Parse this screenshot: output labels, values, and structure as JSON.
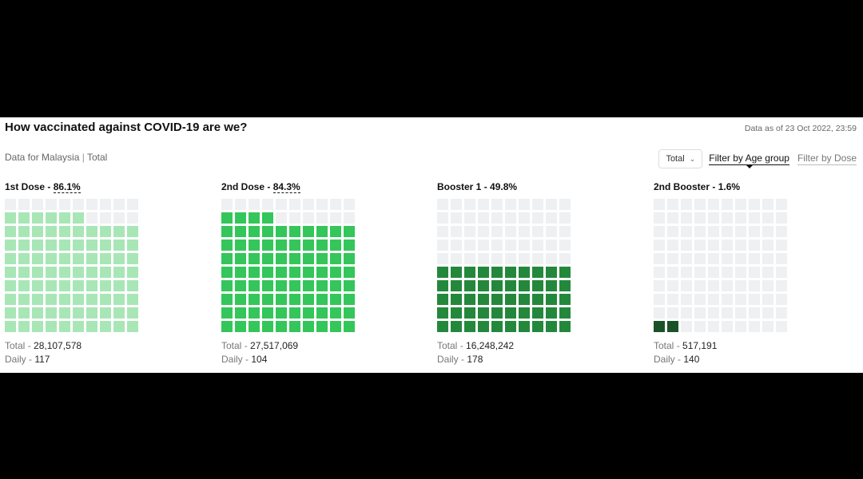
{
  "header": {
    "title": "How vaccinated against COVID-19 are we?",
    "as_of": "Data as of 23 Oct 2022, 23:59",
    "region": "Data for Malaysia",
    "separator": "|",
    "scope": "Total"
  },
  "controls": {
    "dropdown_value": "Total",
    "filter_age": "Filter by Age group",
    "filter_dose": "Filter by Dose"
  },
  "colors": {
    "empty": "#eef0f2"
  },
  "chart_data": [
    {
      "type": "waffle",
      "title": "1st Dose",
      "separator": " - ",
      "percent_label": "86.1%",
      "value": 86.1,
      "color": "#a8e6b6",
      "total_label": "Total",
      "total_value": "28,107,578",
      "daily_label": "Daily",
      "daily_value": "117"
    },
    {
      "type": "waffle",
      "title": "2nd Dose",
      "separator": " - ",
      "percent_label": "84.3%",
      "value": 84.3,
      "color": "#34c65a",
      "total_label": "Total",
      "total_value": "27,517,069",
      "daily_label": "Daily",
      "daily_value": "104"
    },
    {
      "type": "waffle",
      "title": "Booster 1",
      "separator": " - ",
      "percent_label": "49.8%",
      "value": 49.8,
      "color": "#24883c",
      "total_label": "Total",
      "total_value": "16,248,242",
      "daily_label": "Daily",
      "daily_value": "178"
    },
    {
      "type": "waffle",
      "title": "2nd Booster",
      "separator": " - ",
      "percent_label": "1.6%",
      "value": 1.6,
      "color": "#1a5227",
      "total_label": "Total",
      "total_value": "517,191",
      "daily_label": "Daily",
      "daily_value": "140"
    }
  ]
}
